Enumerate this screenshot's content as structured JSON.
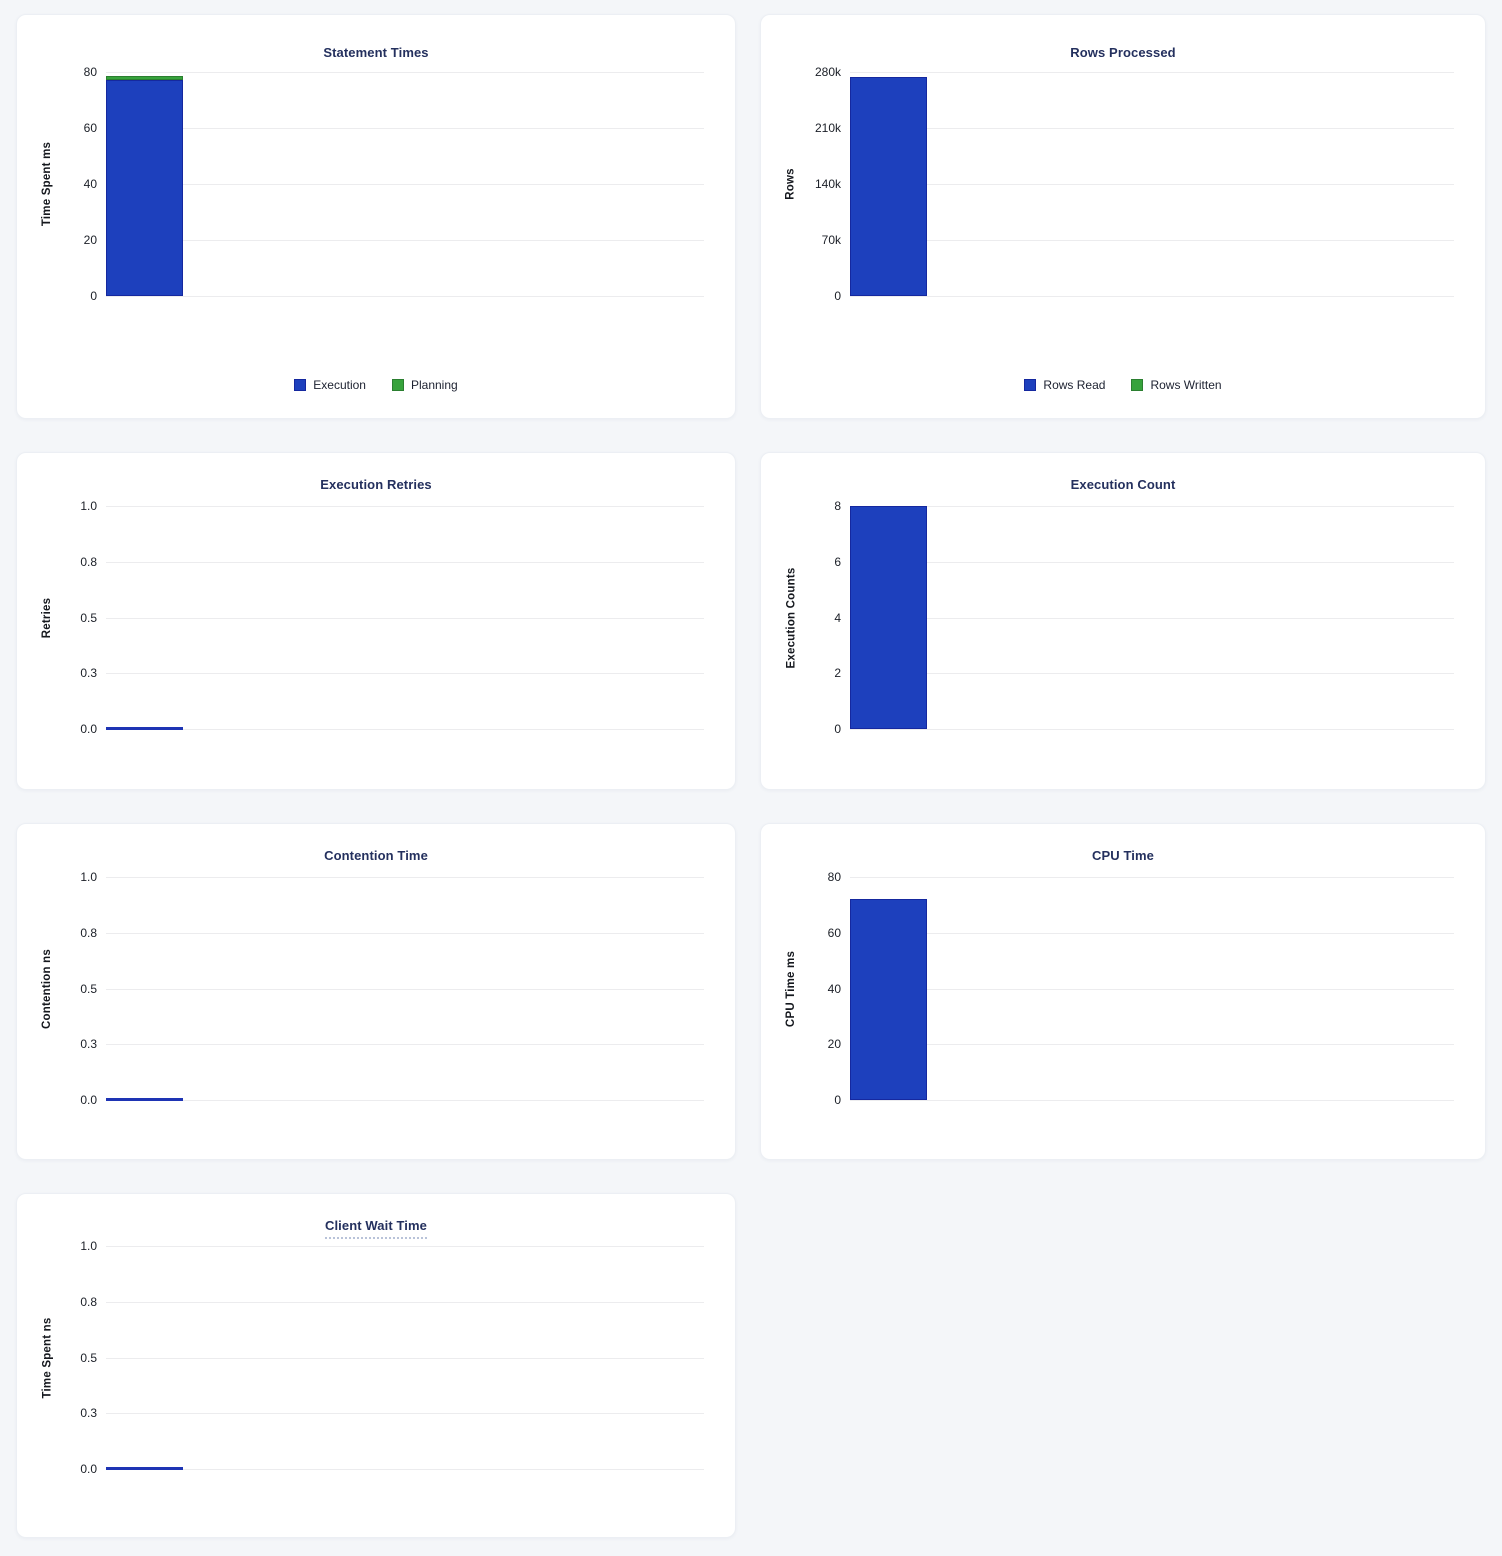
{
  "page": {
    "background": "#f4f6f9"
  },
  "colors": {
    "blue": "#1d40bd",
    "blue_border": "#15289f",
    "green": "#37a33c",
    "green_border": "#2b7f30",
    "title_navy": "#24305e",
    "grid": "#ececee",
    "tick_text": "#1b1f27"
  },
  "chart_data": [
    {
      "type": "bar",
      "title": "Statement Times",
      "ylabel": "Time Spent ms",
      "yticks": [
        "80",
        "60",
        "40",
        "20",
        "0"
      ],
      "ylim": [
        0,
        80
      ],
      "stacked": true,
      "legend": true,
      "legend_position": "bottom",
      "grid": true,
      "series": [
        {
          "name": "Execution",
          "color_key": "blue",
          "value": 77
        },
        {
          "name": "Planning",
          "color_key": "green",
          "value": 1.5
        }
      ]
    },
    {
      "type": "bar",
      "title": "Rows Processed",
      "ylabel": "Rows",
      "yticks": [
        "280k",
        "210k",
        "140k",
        "70k",
        "0"
      ],
      "ylim": [
        0,
        280000
      ],
      "stacked": true,
      "legend": true,
      "legend_position": "bottom",
      "grid": true,
      "series": [
        {
          "name": "Rows Read",
          "color_key": "blue",
          "value": 274000
        },
        {
          "name": "Rows Written",
          "color_key": "green",
          "value": 0
        }
      ]
    },
    {
      "type": "bar",
      "title": "Execution Retries",
      "ylabel": "Retries",
      "yticks": [
        "1.0",
        "0.8",
        "0.5",
        "0.3",
        "0.0"
      ],
      "ylim": [
        0,
        1
      ],
      "stacked": false,
      "legend": false,
      "grid": true,
      "series": [
        {
          "name": "Retries",
          "color_key": "blue",
          "value": 0
        }
      ]
    },
    {
      "type": "bar",
      "title": "Execution Count",
      "ylabel": "Execution Counts",
      "yticks": [
        "8",
        "6",
        "4",
        "2",
        "0"
      ],
      "ylim": [
        0,
        8
      ],
      "stacked": false,
      "legend": false,
      "grid": true,
      "series": [
        {
          "name": "Execution Count",
          "color_key": "blue",
          "value": 8
        }
      ]
    },
    {
      "type": "bar",
      "title": "Contention Time",
      "ylabel": "Contention ns",
      "yticks": [
        "1.0",
        "0.8",
        "0.5",
        "0.3",
        "0.0"
      ],
      "ylim": [
        0,
        1
      ],
      "stacked": false,
      "legend": false,
      "grid": true,
      "series": [
        {
          "name": "Contention",
          "color_key": "blue",
          "value": 0
        }
      ]
    },
    {
      "type": "bar",
      "title": "CPU Time",
      "ylabel": "CPU Time ms",
      "yticks": [
        "80",
        "60",
        "40",
        "20",
        "0"
      ],
      "ylim": [
        0,
        80
      ],
      "stacked": false,
      "legend": false,
      "grid": true,
      "series": [
        {
          "name": "CPU Time",
          "color_key": "blue",
          "value": 72
        }
      ]
    },
    {
      "type": "bar",
      "title": "Client Wait Time",
      "title_underline": true,
      "ylabel": "Time Spent ns",
      "yticks": [
        "1.0",
        "0.8",
        "0.5",
        "0.3",
        "0.0"
      ],
      "ylim": [
        0,
        1
      ],
      "stacked": false,
      "legend": false,
      "grid": true,
      "series": [
        {
          "name": "Client Wait",
          "color_key": "blue",
          "value": 0
        }
      ]
    }
  ]
}
